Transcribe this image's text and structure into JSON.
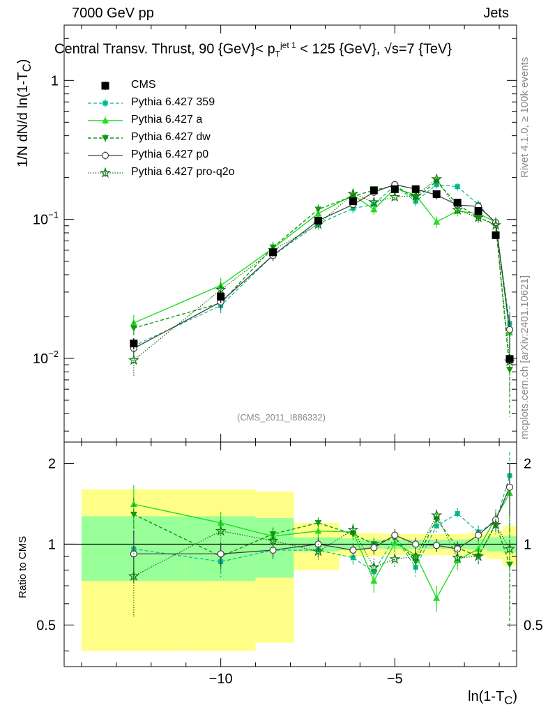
{
  "header": {
    "left": "7000 GeV pp",
    "right": "Jets"
  },
  "title": {
    "main": "Central Transv. Thrust, 90 {GeV}< p",
    "sup": "jet 1",
    "sub": "T",
    "rest": " < 125 {GeV}, √s=7 {TeV}"
  },
  "side_labels": {
    "rivet": "Rivet 4.1.0, ≥ 100k events",
    "mcplots": "mcplots.cern.ch [arXiv:2401.10621]"
  },
  "watermark": "(CMS_2011_I886332)",
  "axis_titles": {
    "y_main": "1/N   dN/d ln(1-T",
    "y_main_sub": "C",
    "y_main_end": ")",
    "y_ratio": "Ratio to CMS",
    "x": "ln(1-T",
    "x_sub": "C",
    "x_end": ")"
  },
  "colors": {
    "cms": "#000000",
    "p359": "#00b98f",
    "pa": "#22dd22",
    "pdw": "#119911",
    "pp0": "#404040",
    "pq2o": "#117711",
    "band_inner": "#99ff99",
    "band_outer": "#ffff88"
  },
  "chart_data": {
    "type": "scatter",
    "x_range": [
      -14.5,
      -1.5
    ],
    "x_ticks": [
      -10,
      -5
    ],
    "x_tick_labels": [
      "−10",
      "−5"
    ],
    "main_ylim": [
      0.0025,
      2.5
    ],
    "main_y_ticks": [
      0.01,
      0.1,
      1
    ],
    "ratio_ylim": [
      0.35,
      2.4
    ],
    "ratio_y_ticks": [
      0.5,
      1,
      2
    ],
    "ratio_y_tick_labels": [
      "0.5",
      "1",
      "2"
    ],
    "x": [
      -12.5,
      -10.0,
      -8.5,
      -7.2,
      -6.2,
      -5.6,
      -5.0,
      -4.4,
      -3.8,
      -3.2,
      -2.6,
      -2.1,
      -1.7
    ],
    "series": [
      {
        "name": "CMS",
        "key": "cms",
        "values": [
          0.0128,
          0.0278,
          0.058,
          0.098,
          0.135,
          0.162,
          0.165,
          0.165,
          0.152,
          0.132,
          0.115,
          0.077,
          0.0099
        ],
        "errors": [
          0.0012,
          0.0028,
          0.004,
          0.006,
          0.008,
          0.009,
          0.009,
          0.009,
          0.008,
          0.007,
          0.006,
          0.004,
          0.0008
        ]
      },
      {
        "name": "Pythia 6.427 359",
        "key": "p359",
        "values": [
          0.0123,
          0.024,
          0.055,
          0.093,
          0.12,
          0.128,
          0.175,
          0.135,
          0.178,
          0.172,
          0.128,
          0.093,
          0.0178
        ],
        "errors": [
          0.0015,
          0.003,
          0.005,
          0.007,
          0.009,
          0.01,
          0.011,
          0.01,
          0.011,
          0.011,
          0.009,
          0.008,
          0.006
        ]
      },
      {
        "name": "Pythia 6.427 a",
        "key": "pa",
        "values": [
          0.018,
          0.0335,
          0.062,
          0.11,
          0.15,
          0.118,
          0.167,
          0.15,
          0.096,
          0.115,
          0.11,
          0.096,
          0.0153
        ],
        "errors": [
          0.0025,
          0.0045,
          0.006,
          0.009,
          0.011,
          0.01,
          0.012,
          0.011,
          0.009,
          0.01,
          0.009,
          0.008,
          0.005
        ]
      },
      {
        "name": "Pythia 6.427 dw",
        "key": "pdw",
        "values": [
          0.0165,
          0.025,
          0.063,
          0.118,
          0.147,
          0.162,
          0.175,
          0.142,
          0.188,
          0.128,
          0.103,
          0.092,
          0.0083
        ],
        "errors": [
          0.0022,
          0.0035,
          0.006,
          0.01,
          0.011,
          0.011,
          0.012,
          0.011,
          0.012,
          0.01,
          0.009,
          0.008,
          0.0045
        ]
      },
      {
        "name": "Pythia 6.427 p0",
        "key": "pp0",
        "values": [
          0.0118,
          0.0255,
          0.055,
          0.098,
          0.128,
          0.157,
          0.178,
          0.165,
          0.15,
          0.127,
          0.124,
          0.095,
          0.0161
        ],
        "errors": [
          0.0014,
          0.003,
          0.005,
          0.007,
          0.009,
          0.01,
          0.011,
          0.01,
          0.01,
          0.009,
          0.009,
          0.008,
          0.0045
        ]
      },
      {
        "name": "Pythia 6.427 pro-q2o",
        "key": "pq2o",
        "values": [
          0.0097,
          0.0312,
          0.06,
          0.092,
          0.153,
          0.133,
          0.145,
          0.148,
          0.195,
          0.117,
          0.103,
          0.091,
          0.0095
        ],
        "errors": [
          0.0022,
          0.004,
          0.006,
          0.008,
          0.011,
          0.01,
          0.011,
          0.011,
          0.012,
          0.009,
          0.009,
          0.008,
          0.004
        ]
      }
    ],
    "ratio": {
      "reference": 1,
      "band_edges": [
        -14.0,
        -11.0,
        -9.0,
        -7.9,
        -6.6,
        -6.0,
        -5.35,
        -4.7,
        -4.1,
        -3.5,
        -2.9,
        -2.35,
        -1.9,
        -1.5
      ],
      "band_inner_half": [
        0.27,
        0.27,
        0.25,
        0.06,
        0.05,
        0.04,
        0.04,
        0.04,
        0.04,
        0.04,
        0.045,
        0.06,
        0.07
      ],
      "band_outer_half": [
        0.6,
        0.6,
        0.57,
        0.2,
        0.1,
        0.1,
        0.09,
        0.09,
        0.09,
        0.09,
        0.1,
        0.12,
        0.17
      ],
      "series": [
        {
          "key": "p359",
          "values": [
            0.96,
            0.86,
            0.95,
            0.95,
            0.89,
            0.79,
            1.06,
            0.82,
            1.17,
            1.3,
            1.11,
            1.21,
            1.8
          ]
        },
        {
          "key": "pa",
          "values": [
            1.41,
            1.2,
            1.07,
            1.12,
            1.11,
            0.73,
            1.01,
            0.91,
            0.63,
            0.87,
            0.96,
            1.25,
            1.55
          ]
        },
        {
          "key": "pdw",
          "values": [
            1.29,
            0.9,
            1.09,
            1.2,
            1.09,
            1.0,
            1.06,
            0.86,
            1.24,
            0.97,
            0.9,
            1.19,
            0.84
          ]
        },
        {
          "key": "pp0",
          "values": [
            0.92,
            0.92,
            0.95,
            1.0,
            0.95,
            0.97,
            1.08,
            1.0,
            0.99,
            0.96,
            1.08,
            1.23,
            1.63
          ]
        },
        {
          "key": "pq2o",
          "values": [
            0.76,
            1.12,
            1.03,
            0.94,
            1.13,
            0.82,
            0.88,
            0.9,
            1.28,
            0.89,
            0.9,
            1.18,
            0.96
          ]
        }
      ],
      "errors": [
        0.25,
        0.12,
        0.08,
        0.07,
        0.07,
        0.07,
        0.07,
        0.07,
        0.07,
        0.07,
        0.07,
        0.1,
        0.45
      ]
    }
  }
}
